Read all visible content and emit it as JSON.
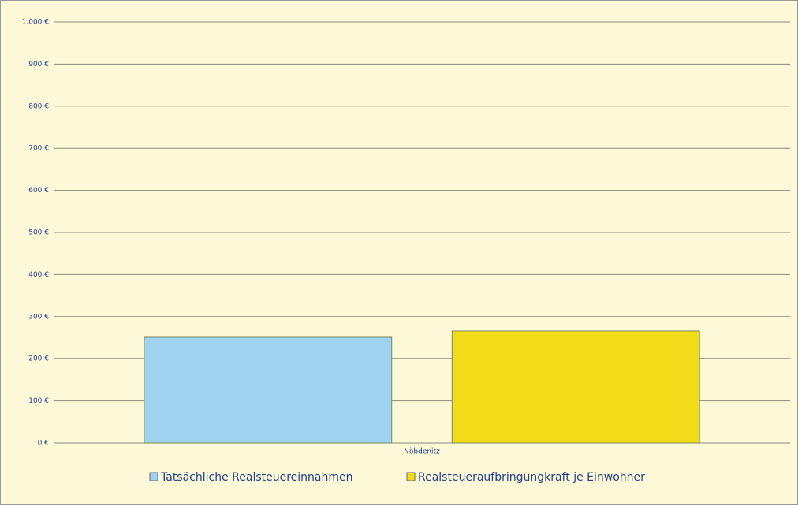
{
  "chart_data": {
    "type": "bar",
    "categories": [
      "Nöbdenitz"
    ],
    "series": [
      {
        "name": "Tatsächliche Realsteuereinnahmen",
        "color": "#9fd3f0",
        "values": [
          251
        ]
      },
      {
        "name": "Realsteueraufbringungkraft je Einwohner",
        "color": "#f2dc1a",
        "values": [
          266
        ]
      }
    ],
    "ylim": [
      0,
      1000
    ],
    "yticks": [
      {
        "value": 0,
        "label": "0 €"
      },
      {
        "value": 100,
        "label": "100 €"
      },
      {
        "value": 200,
        "label": "200 €"
      },
      {
        "value": 300,
        "label": "300 €"
      },
      {
        "value": 400,
        "label": "400 €"
      },
      {
        "value": 500,
        "label": "500 €"
      },
      {
        "value": 600,
        "label": "600 €"
      },
      {
        "value": 700,
        "label": "700 €"
      },
      {
        "value": 800,
        "label": "800 €"
      },
      {
        "value": 900,
        "label": "900 €"
      },
      {
        "value": 1000,
        "label": "1.000 €"
      }
    ],
    "grid": true,
    "legend": "bottom"
  }
}
